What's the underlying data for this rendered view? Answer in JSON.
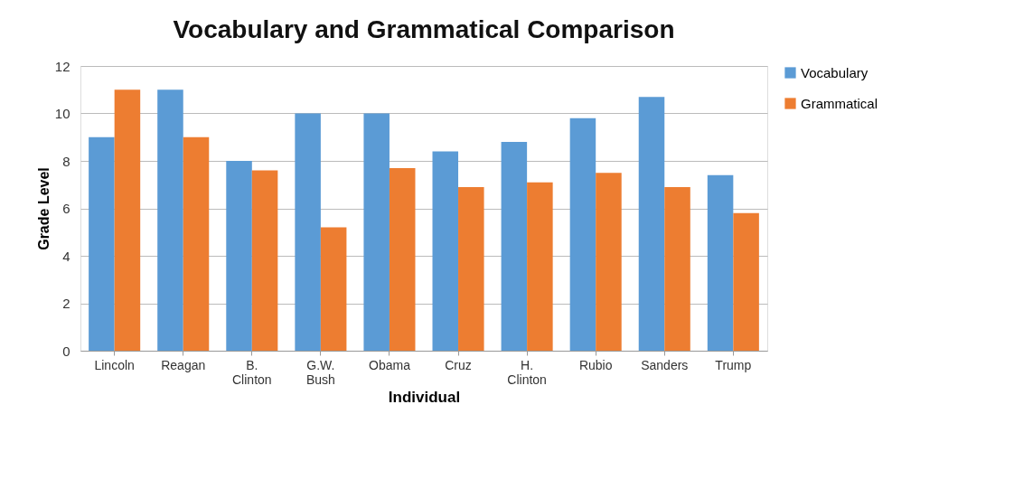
{
  "chart_data": {
    "type": "bar",
    "title": "Vocabulary and Grammatical Comparison",
    "xlabel": "Individual",
    "ylabel": "Grade Level",
    "categories": [
      "Lincoln",
      "Reagan",
      "B. Clinton",
      "G.W. Bush",
      "Obama",
      "Cruz",
      "H. Clinton",
      "Rubio",
      "Sanders",
      "Trump"
    ],
    "series": [
      {
        "name": "Vocabulary",
        "color": "#5b9bd5",
        "values": [
          9.0,
          11.0,
          8.0,
          10.0,
          10.0,
          8.4,
          8.8,
          9.8,
          10.7,
          7.4
        ]
      },
      {
        "name": "Grammatical",
        "color": "#ed7d31",
        "values": [
          11.0,
          9.0,
          7.6,
          5.2,
          7.7,
          6.9,
          7.1,
          7.5,
          6.9,
          5.8
        ]
      }
    ],
    "ylim": [
      0,
      12
    ],
    "yticks": [
      0,
      2,
      4,
      6,
      8,
      10,
      12
    ],
    "grid": "y",
    "legend": "right"
  }
}
